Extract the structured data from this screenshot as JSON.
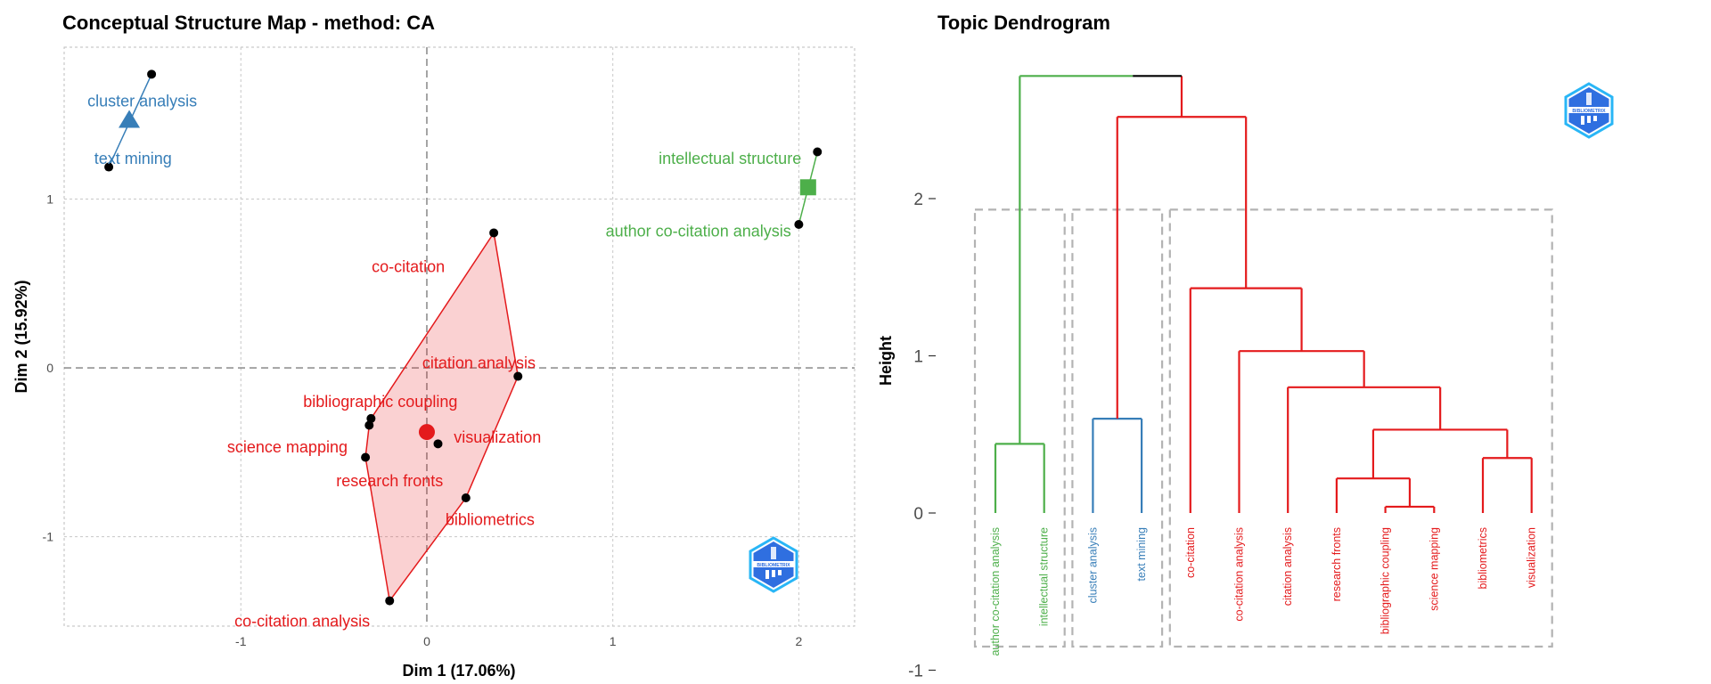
{
  "chart_data": [
    {
      "type": "scatter",
      "title": "Conceptual Structure Map - method: CA",
      "xlabel": "Dim 1 (17.06%)",
      "ylabel": "Dim 2 (15.92%)",
      "xlim": [
        -1.95,
        2.3
      ],
      "ylim": [
        -1.53,
        1.9
      ],
      "xticks": [
        -1,
        0,
        1,
        2
      ],
      "yticks": [
        -1,
        0,
        1
      ],
      "xtick_labels": [
        "-1",
        "0",
        "1",
        "2"
      ],
      "ytick_labels": [
        "-1",
        "0",
        "1"
      ],
      "grid": true,
      "clusters": [
        {
          "color": "#e41a1c",
          "centroid": [
            0.0,
            -0.38
          ],
          "centroid_shape": "circle",
          "points": [
            {
              "label": "co-citation",
              "x": 0.36,
              "y": 0.8
            },
            {
              "label": "citation analysis",
              "x": 0.49,
              "y": -0.05
            },
            {
              "label": "bibliographic coupling",
              "x": -0.3,
              "y": -0.3
            },
            {
              "label": "visualization",
              "x": 0.06,
              "y": -0.45
            },
            {
              "label": "science mapping",
              "x": -0.33,
              "y": -0.53
            },
            {
              "label": "research fronts",
              "x": -0.31,
              "y": -0.34
            },
            {
              "label": "bibliometrics",
              "x": 0.21,
              "y": -0.77
            },
            {
              "label": "co-citation analysis",
              "x": -0.2,
              "y": -1.38
            }
          ],
          "hull_order": [
            "co-citation",
            "citation analysis",
            "bibliometrics",
            "co-citation analysis",
            "science mapping",
            "research fronts",
            "bibliographic coupling"
          ]
        },
        {
          "color": "#377eb8",
          "centroid": [
            -1.6,
            1.47
          ],
          "centroid_shape": "triangle",
          "points": [
            {
              "label": "cluster analysis",
              "x": -1.48,
              "y": 1.74
            },
            {
              "label": "text mining",
              "x": -1.71,
              "y": 1.19
            }
          ],
          "hull_order": [
            "cluster analysis",
            "text mining"
          ]
        },
        {
          "color": "#4daf4a",
          "centroid": [
            2.05,
            1.07
          ],
          "centroid_shape": "square",
          "points": [
            {
              "label": "intellectual structure",
              "x": 2.1,
              "y": 1.28
            },
            {
              "label": "author co-citation analysis",
              "x": 2.0,
              "y": 0.85
            }
          ],
          "hull_order": [
            "intellectual structure",
            "author co-citation analysis"
          ]
        }
      ]
    },
    {
      "type": "dendrogram",
      "title": "Topic Dendrogram",
      "ylabel": "Height",
      "ylim": [
        -1,
        2.9
      ],
      "yticks": [
        -1,
        0,
        1,
        2
      ],
      "ytick_labels": [
        "-1",
        "0",
        "1",
        "2"
      ],
      "leaves": [
        {
          "label": "author co-citation analysis",
          "color": "#4daf4a"
        },
        {
          "label": "intellectual structure",
          "color": "#4daf4a"
        },
        {
          "label": "cluster analysis",
          "color": "#377eb8"
        },
        {
          "label": "text mining",
          "color": "#377eb8"
        },
        {
          "label": "co-citation",
          "color": "#e41a1c"
        },
        {
          "label": "co-citation analysis",
          "color": "#e41a1c"
        },
        {
          "label": "citation analysis",
          "color": "#e41a1c"
        },
        {
          "label": "research fronts",
          "color": "#e41a1c"
        },
        {
          "label": "bibliographic coupling",
          "color": "#e41a1c"
        },
        {
          "label": "science mapping",
          "color": "#e41a1c"
        },
        {
          "label": "bibliometrics",
          "color": "#e41a1c"
        },
        {
          "label": "visualization",
          "color": "#e41a1c"
        }
      ],
      "merges": [
        {
          "left": 8,
          "right": 9,
          "height": 0.04,
          "color": "#e41a1c"
        },
        {
          "left": 7,
          "right": -1,
          "height": 0.22,
          "color": "#e41a1c"
        },
        {
          "left": 10,
          "right": 11,
          "height": 0.35,
          "color": "#e41a1c"
        },
        {
          "left": -2,
          "right": -3,
          "height": 0.53,
          "color": "#e41a1c"
        },
        {
          "left": 6,
          "right": -4,
          "height": 0.8,
          "color": "#e41a1c"
        },
        {
          "left": 5,
          "right": -5,
          "height": 1.03,
          "color": "#e41a1c"
        },
        {
          "left": 4,
          "right": -6,
          "height": 1.43,
          "color": "#e41a1c"
        },
        {
          "left": 0,
          "right": 1,
          "height": 0.44,
          "color": "#4daf4a"
        },
        {
          "left": 2,
          "right": 3,
          "height": 0.6,
          "color": "#377eb8"
        },
        {
          "left": -9,
          "right": -7,
          "height": 2.52,
          "color": "#e41a1c"
        },
        {
          "left": -8,
          "right": -10,
          "height": 2.78,
          "color": "#000000"
        }
      ],
      "top_link_colors": {
        "left": "#4daf4a",
        "right": "#000000"
      },
      "cluster_boxes": [
        {
          "from": 0,
          "to": 1
        },
        {
          "from": 2,
          "to": 3
        },
        {
          "from": 4,
          "to": 11
        }
      ],
      "cluster_box_ylim": [
        -0.85,
        1.93
      ]
    }
  ],
  "logo": {
    "text": "BIBLIOMETRIX",
    "colors": [
      "#2f6fe0",
      "#29b6f6"
    ]
  }
}
